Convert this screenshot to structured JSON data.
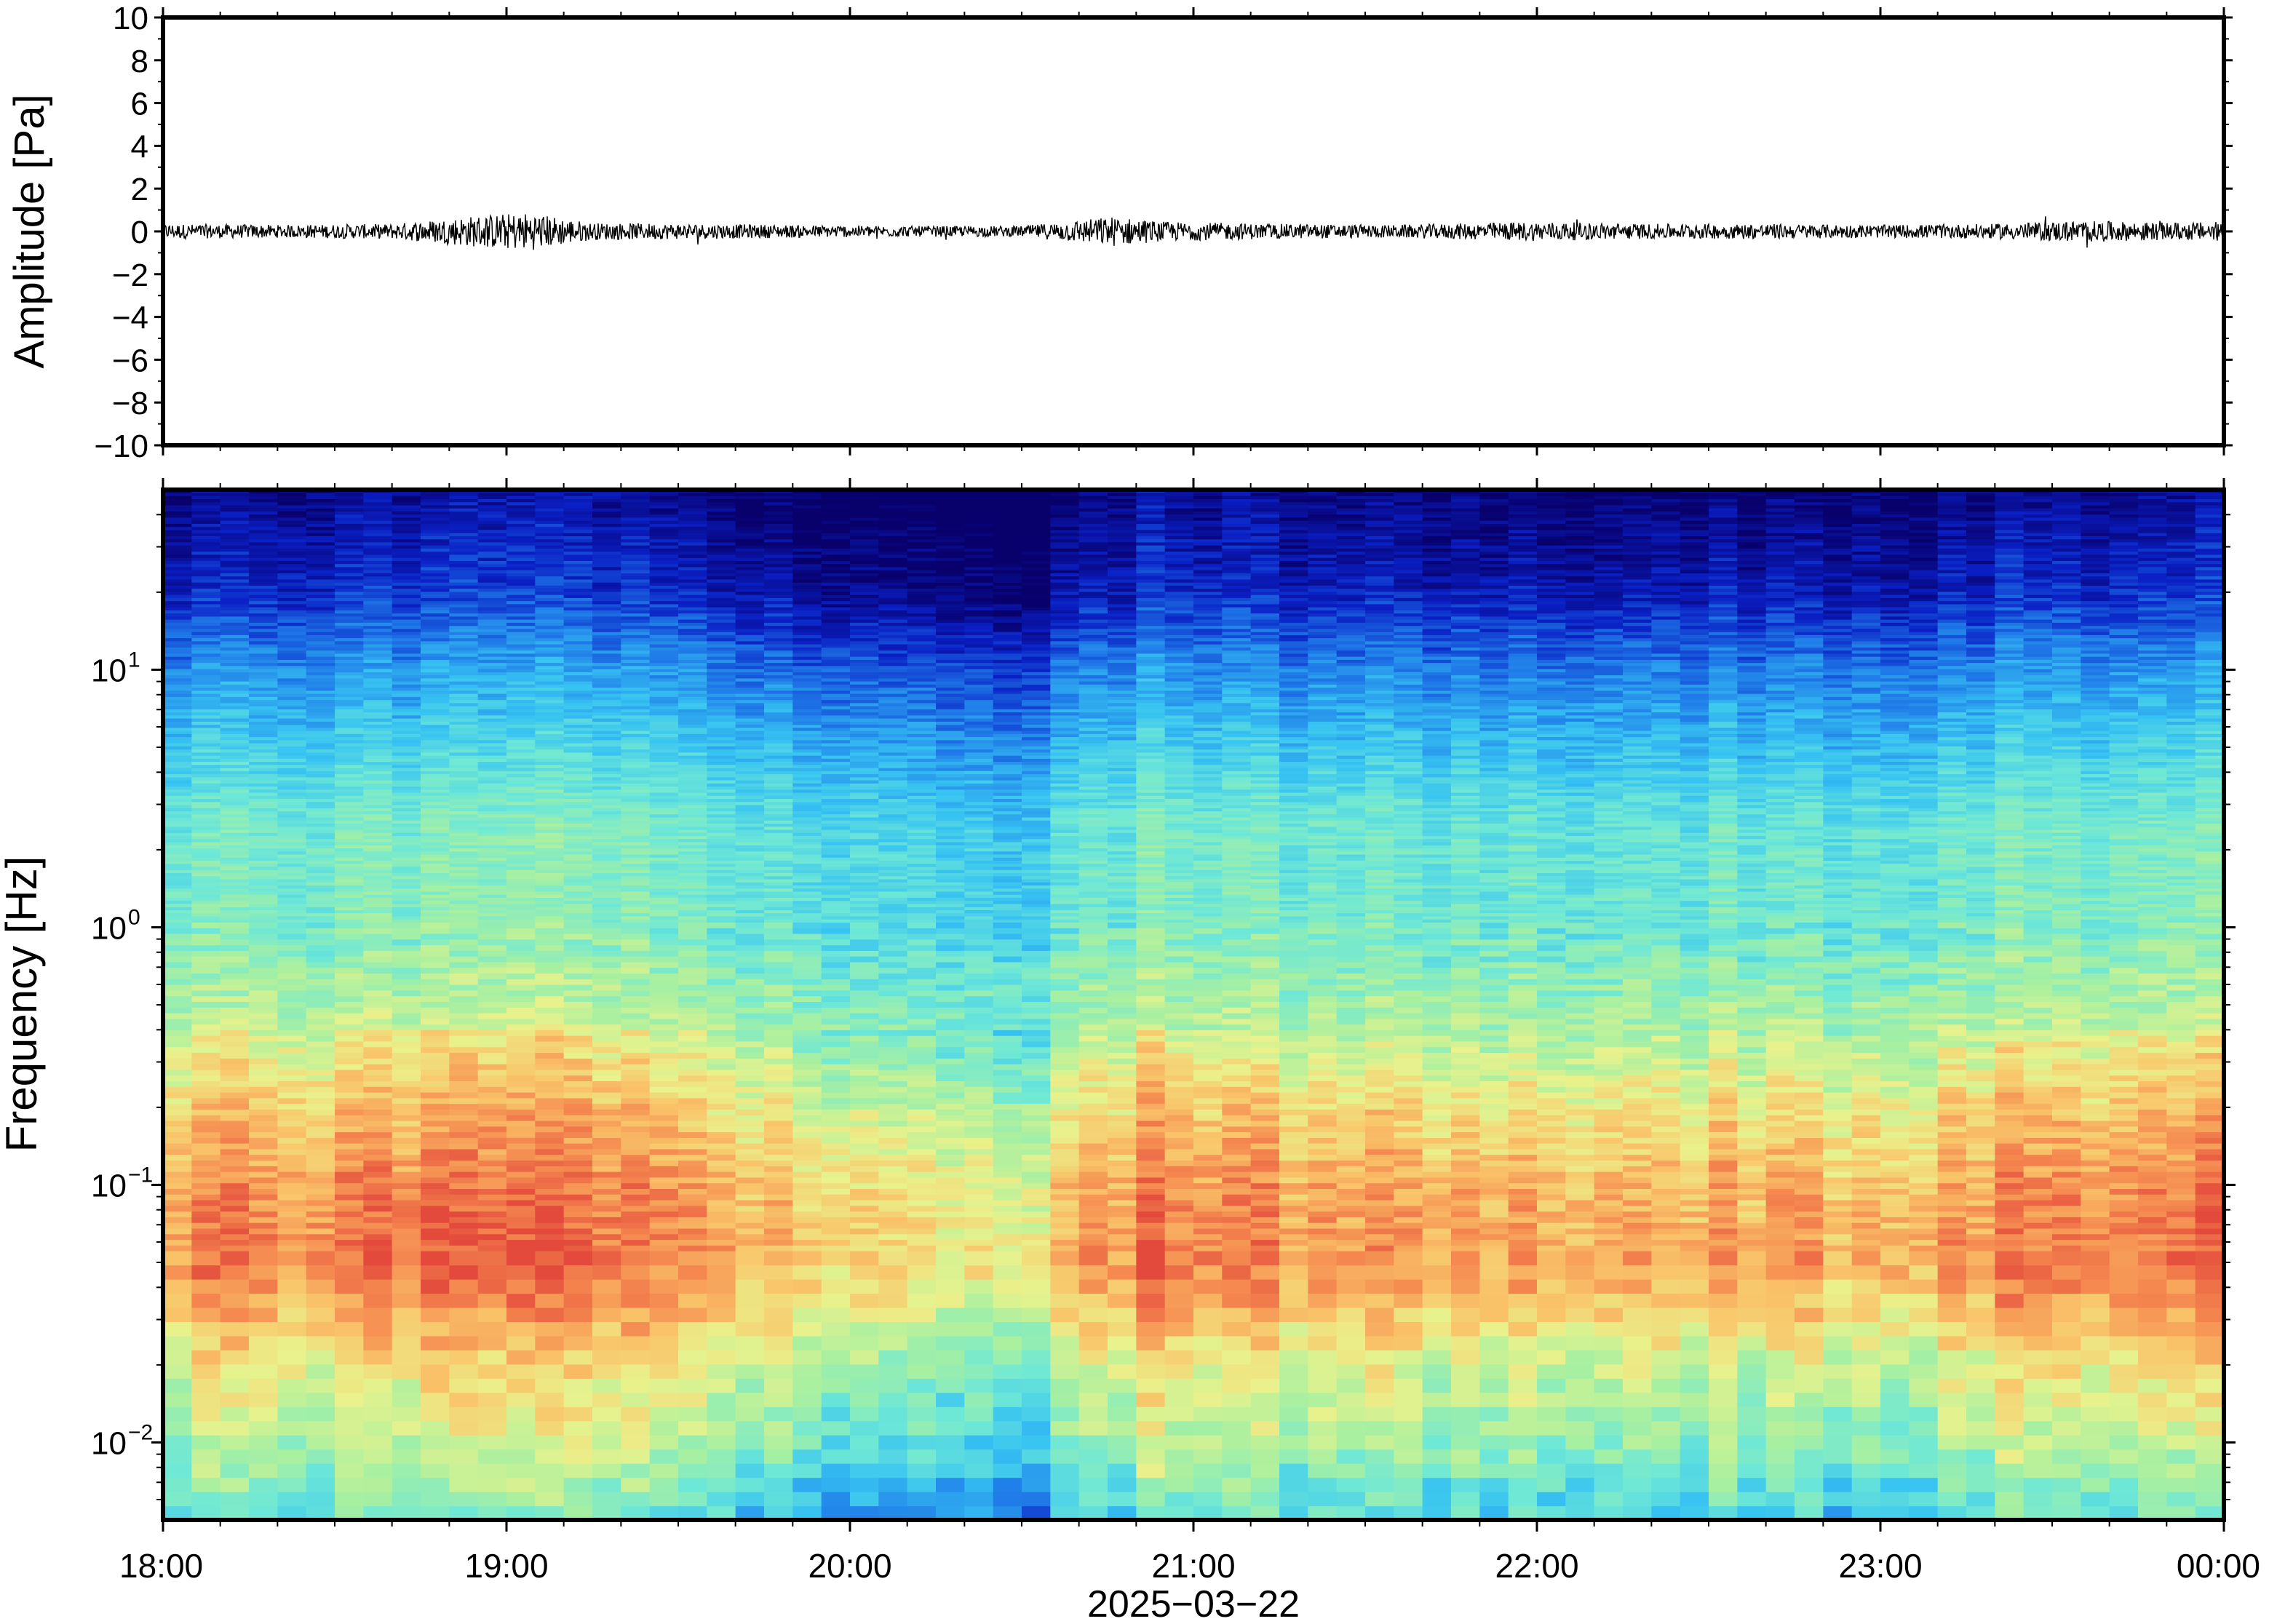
{
  "chart_data": [
    {
      "type": "line",
      "panel": "waveform",
      "ylabel": "Amplitude [Pa]",
      "ylim": [
        -10,
        10
      ],
      "yticks": [
        "10",
        "8",
        "6",
        "4",
        "2",
        "0",
        "−2",
        "−4",
        "−6",
        "−8",
        "−10"
      ],
      "ytick_values": [
        10,
        8,
        6,
        4,
        2,
        0,
        -2,
        -4,
        -6,
        -8,
        -10
      ],
      "xlim": [
        "18:00",
        "00:00"
      ],
      "series": [
        {
          "x_minutes_from_1800": [
            0,
            30,
            60,
            90,
            120,
            150,
            180,
            210,
            240,
            270,
            300,
            330,
            360
          ],
          "amplitude_envelope_pa": [
            0.3,
            0.3,
            0.6,
            0.4,
            0.3,
            0.25,
            0.3,
            0.55,
            0.3,
            0.3,
            0.4,
            0.3,
            0.45
          ],
          "line_color": "#000000"
        }
      ],
      "envelope": [
        {
          "x": 0,
          "amp": 0.35
        },
        {
          "x": 20,
          "amp": 0.3
        },
        {
          "x": 40,
          "amp": 0.35
        },
        {
          "x": 55,
          "amp": 0.75
        },
        {
          "x": 64,
          "amp": 0.9
        },
        {
          "x": 75,
          "amp": 0.4
        },
        {
          "x": 95,
          "amp": 0.35
        },
        {
          "x": 110,
          "amp": 0.3
        },
        {
          "x": 130,
          "amp": 0.25
        },
        {
          "x": 150,
          "amp": 0.25
        },
        {
          "x": 166,
          "amp": 0.7
        },
        {
          "x": 175,
          "amp": 0.45
        },
        {
          "x": 195,
          "amp": 0.35
        },
        {
          "x": 215,
          "amp": 0.3
        },
        {
          "x": 240,
          "amp": 0.45
        },
        {
          "x": 260,
          "amp": 0.35
        },
        {
          "x": 280,
          "amp": 0.35
        },
        {
          "x": 300,
          "amp": 0.3
        },
        {
          "x": 320,
          "amp": 0.35
        },
        {
          "x": 335,
          "amp": 0.5
        },
        {
          "x": 350,
          "amp": 0.4
        },
        {
          "x": 360,
          "amp": 0.45
        }
      ]
    },
    {
      "type": "heatmap",
      "panel": "spectrogram",
      "ylabel": "Frequency [Hz]",
      "yscale": "log",
      "ylim_hz": [
        0.005,
        50
      ],
      "yticks": [
        {
          "base": "10",
          "exp": "1",
          "value": 10
        },
        {
          "base": "10",
          "exp": "0",
          "value": 1
        },
        {
          "base": "10",
          "exp": "−1",
          "value": 0.1
        },
        {
          "base": "10",
          "exp": "−2",
          "value": 0.01
        }
      ],
      "xlabel": "2025−03−22",
      "xticks": [
        "18:00",
        "19:00",
        "20:00",
        "21:00",
        "22:00",
        "23:00",
        "00:00"
      ],
      "xlim": [
        "18:00",
        "00:00"
      ],
      "colormap": [
        "#08006b",
        "#0a1fc4",
        "#1f7ae8",
        "#37c3f2",
        "#6ee8d6",
        "#a9f0a0",
        "#e9f28c",
        "#f9c56a",
        "#f58a50",
        "#e34a3b"
      ],
      "power_profile_by_log_frequency": [
        {
          "log10_hz": 1.7,
          "level": 0.0
        },
        {
          "log10_hz": 1.3,
          "level": 0.08
        },
        {
          "log10_hz": 1.0,
          "level": 0.22
        },
        {
          "log10_hz": 0.7,
          "level": 0.32
        },
        {
          "log10_hz": 0.4,
          "level": 0.42
        },
        {
          "log10_hz": 0.0,
          "level": 0.44
        },
        {
          "log10_hz": -0.4,
          "level": 0.55
        },
        {
          "log10_hz": -0.7,
          "level": 0.68
        },
        {
          "log10_hz": -1.0,
          "level": 0.78
        },
        {
          "log10_hz": -1.3,
          "level": 0.82
        },
        {
          "log10_hz": -1.5,
          "level": 0.72
        },
        {
          "log10_hz": -1.7,
          "level": 0.6
        },
        {
          "log10_hz": -2.0,
          "level": 0.5
        },
        {
          "log10_hz": -2.3,
          "level": 0.35
        }
      ],
      "time_activity": [
        {
          "x": 0,
          "a": 0.05
        },
        {
          "x": 40,
          "a": 0.1
        },
        {
          "x": 64,
          "a": 0.15
        },
        {
          "x": 90,
          "a": 0.1
        },
        {
          "x": 120,
          "a": -0.08
        },
        {
          "x": 150,
          "a": -0.12
        },
        {
          "x": 175,
          "a": 0.15
        },
        {
          "x": 200,
          "a": 0.05
        },
        {
          "x": 230,
          "a": 0.0
        },
        {
          "x": 260,
          "a": 0.05
        },
        {
          "x": 290,
          "a": 0.0
        },
        {
          "x": 330,
          "a": 0.1
        },
        {
          "x": 360,
          "a": 0.1
        }
      ]
    }
  ]
}
